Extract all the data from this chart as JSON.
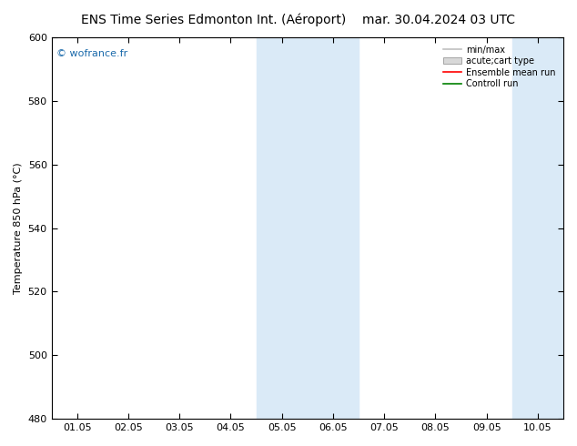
{
  "title_left": "ENS Time Series Edmonton Int. (Aéroport)",
  "title_right": "mar. 30.04.2024 03 UTC",
  "ylabel": "Temperature 850 hPa (°C)",
  "ylim": [
    480,
    600
  ],
  "yticks": [
    480,
    500,
    520,
    540,
    560,
    580,
    600
  ],
  "xtick_labels": [
    "01.05",
    "02.05",
    "03.05",
    "04.05",
    "05.05",
    "06.05",
    "07.05",
    "08.05",
    "09.05",
    "10.05"
  ],
  "shaded_bands": [
    {
      "xstart": 3.5,
      "xend": 5.5
    },
    {
      "xstart": 8.5,
      "xend": 9.5
    }
  ],
  "shaded_color": "#daeaf7",
  "watermark": "© wofrance.fr",
  "watermark_color": "#1a6aab",
  "legend_items": [
    {
      "label": "min/max",
      "color": "#c0c0c0",
      "type": "line",
      "lw": 1.2
    },
    {
      "label": "acute;cart type",
      "color": "#d8d8d8",
      "type": "rect"
    },
    {
      "label": "Ensemble mean run",
      "color": "red",
      "type": "line",
      "lw": 1.2
    },
    {
      "label": "Controll run",
      "color": "green",
      "type": "line",
      "lw": 1.2
    }
  ],
  "bg_color": "#ffffff",
  "plot_bg_color": "#ffffff",
  "border_color": "#000000",
  "title_fontsize": 10,
  "ylabel_fontsize": 8,
  "tick_fontsize": 8,
  "watermark_fontsize": 8,
  "legend_fontsize": 7
}
